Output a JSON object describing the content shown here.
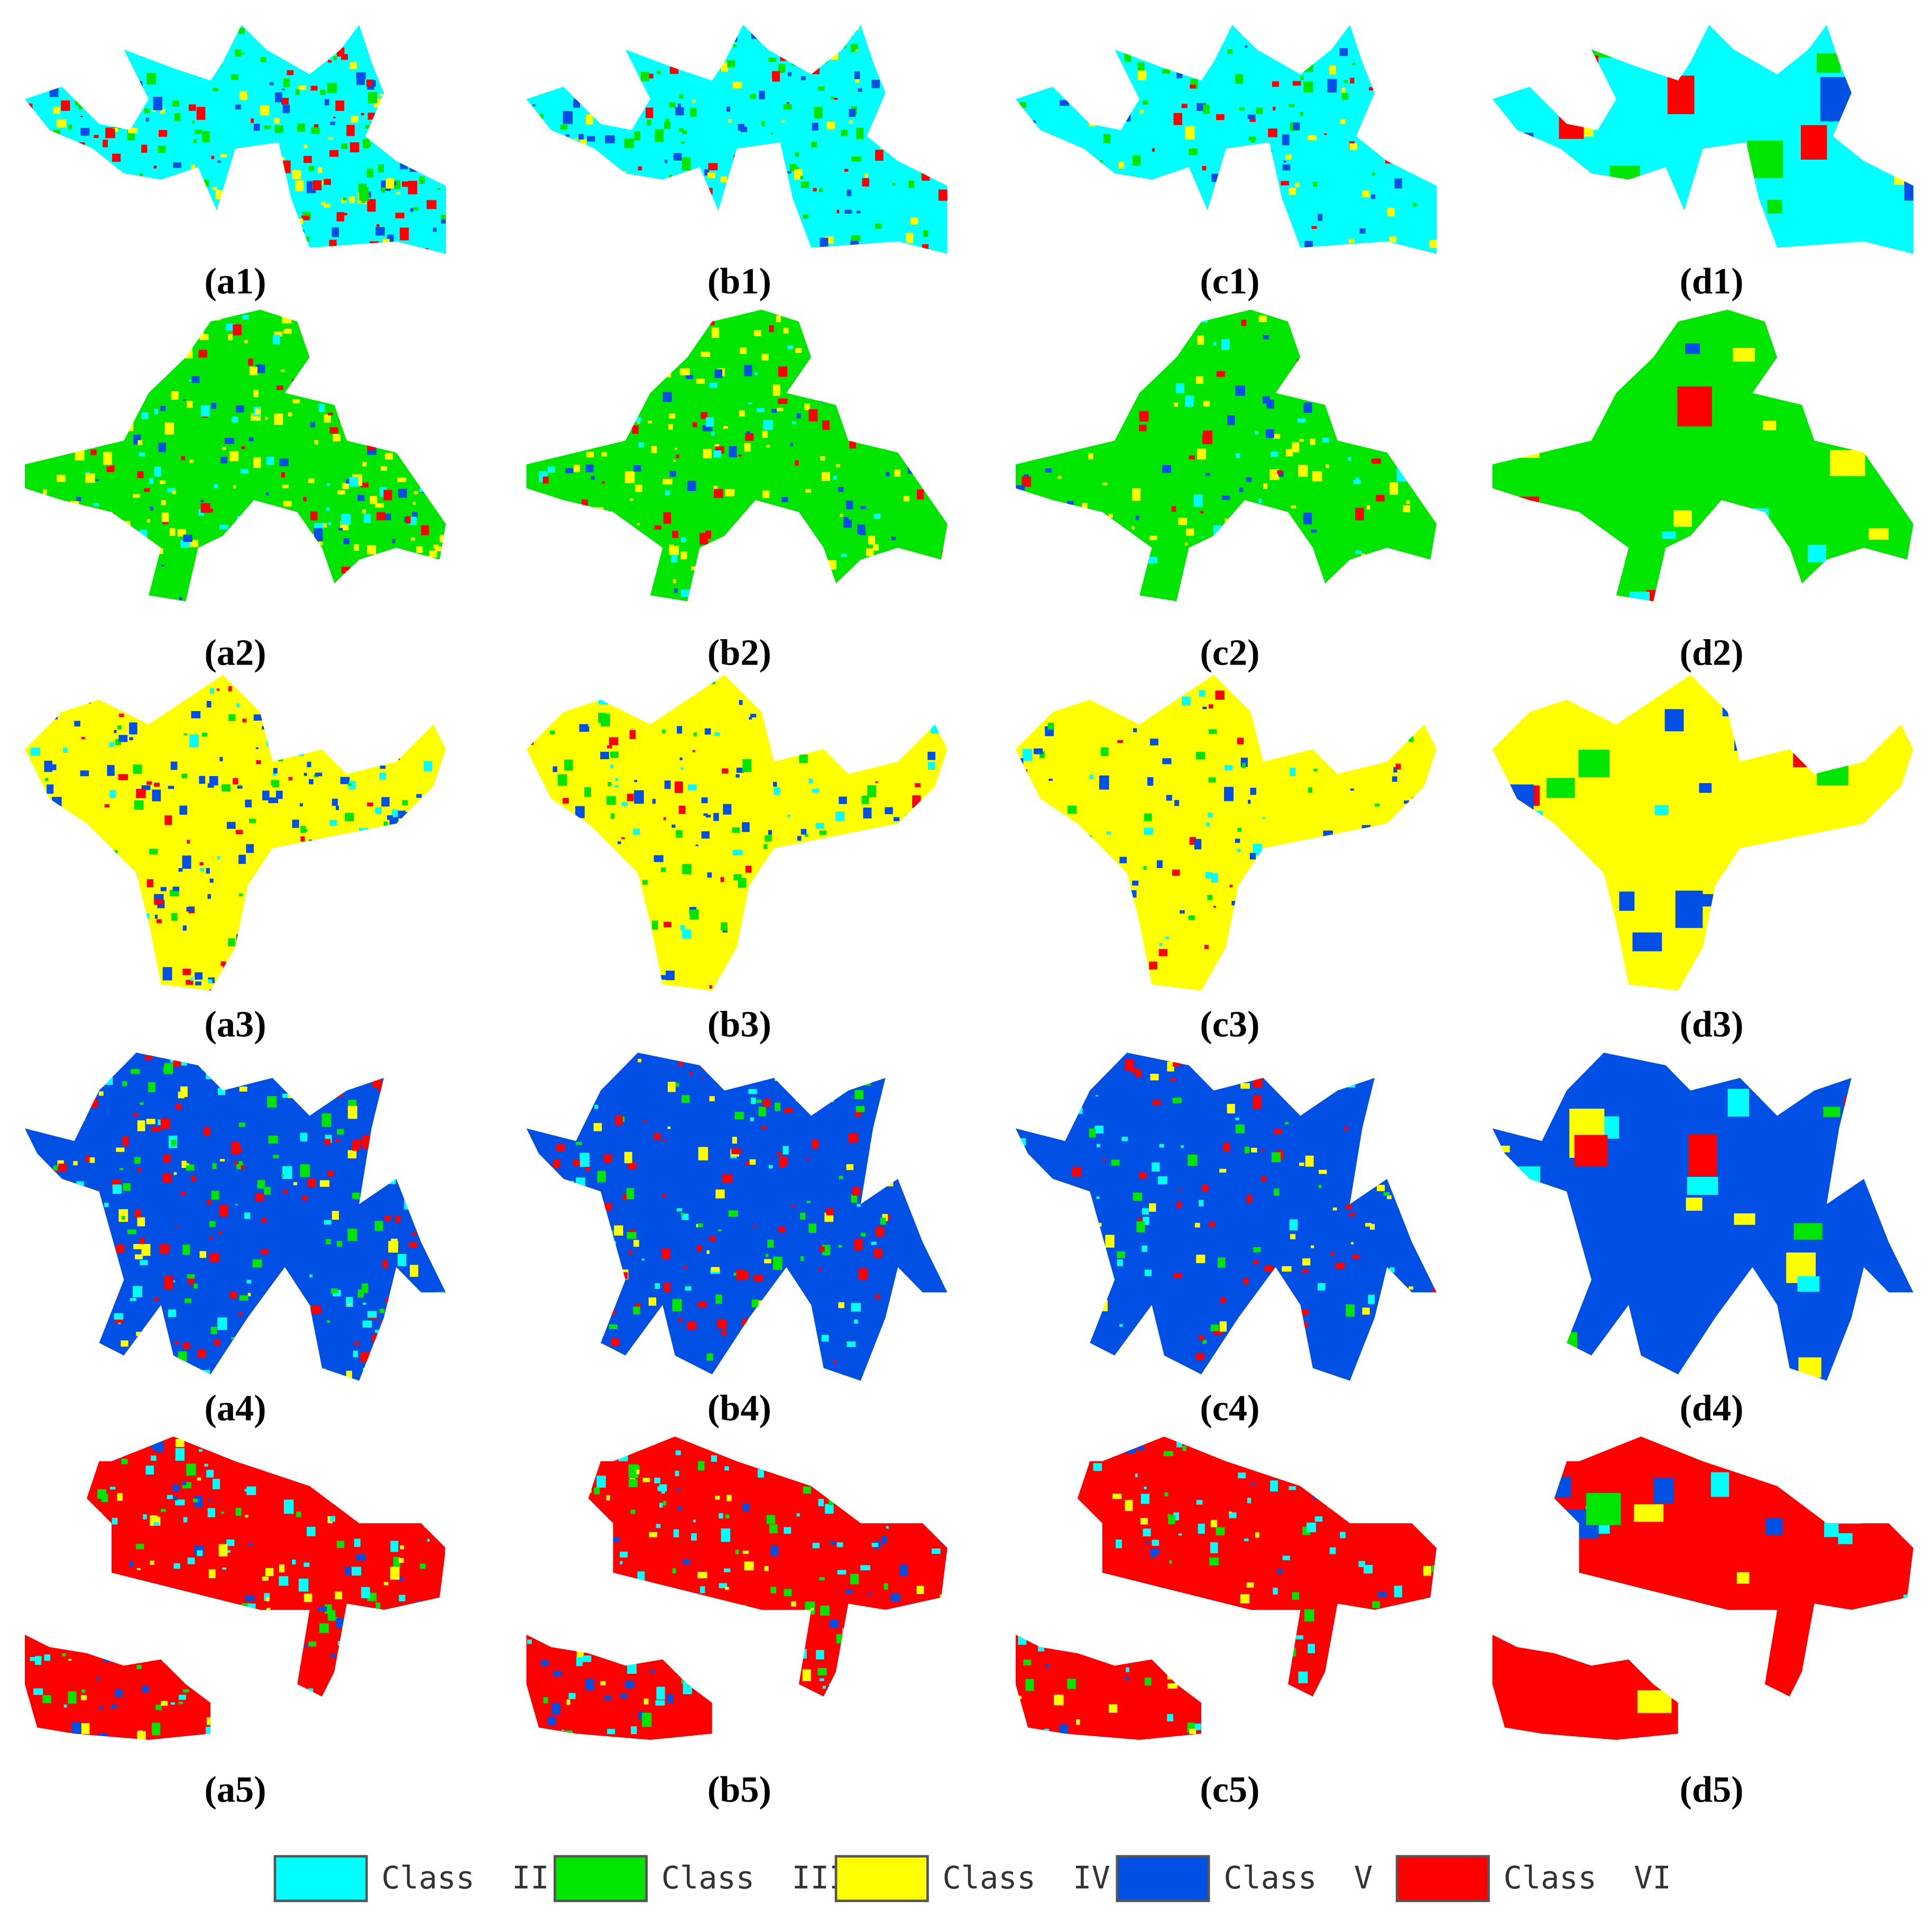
{
  "panels": [
    {
      "label": "(a1)"
    },
    {
      "label": "(b1)"
    },
    {
      "label": "(c1)"
    },
    {
      "label": "(d1)"
    },
    {
      "label": "(a2)"
    },
    {
      "label": "(b2)"
    },
    {
      "label": "(c2)"
    },
    {
      "label": "(d2)"
    },
    {
      "label": "(a3)"
    },
    {
      "label": "(b3)"
    },
    {
      "label": "(c3)"
    },
    {
      "label": "(d3)"
    },
    {
      "label": "(a4)"
    },
    {
      "label": "(b4)"
    },
    {
      "label": "(c4)"
    },
    {
      "label": "(d4)"
    },
    {
      "label": "(a5)"
    },
    {
      "label": "(b5)"
    },
    {
      "label": "(c5)"
    },
    {
      "label": "(d5)"
    }
  ],
  "legend": [
    {
      "name": "Class  II",
      "color": "#00ffff"
    },
    {
      "name": "Class  III",
      "color": "#00e600"
    },
    {
      "name": "Class  IV",
      "color": "#ffff00"
    },
    {
      "name": "Class  V",
      "color": "#0050e6"
    },
    {
      "name": "Class  VI",
      "color": "#ff0000"
    }
  ]
}
